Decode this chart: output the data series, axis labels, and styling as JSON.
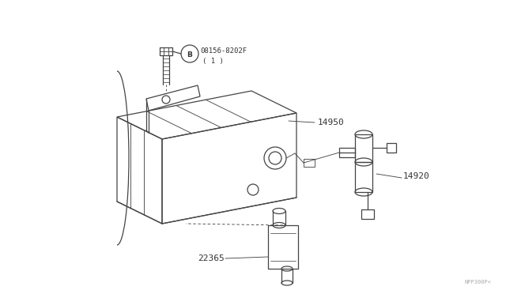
{
  "background_color": "#ffffff",
  "line_color": "#444444",
  "text_color": "#333333",
  "fig_width": 6.4,
  "fig_height": 3.72,
  "watermark": "NPP300P<",
  "canister_label": "14950",
  "solenoid_label": "14920",
  "sensor_label": "22365",
  "bolt_label": "08156-8202F",
  "bolt_qty": "( 1 )"
}
